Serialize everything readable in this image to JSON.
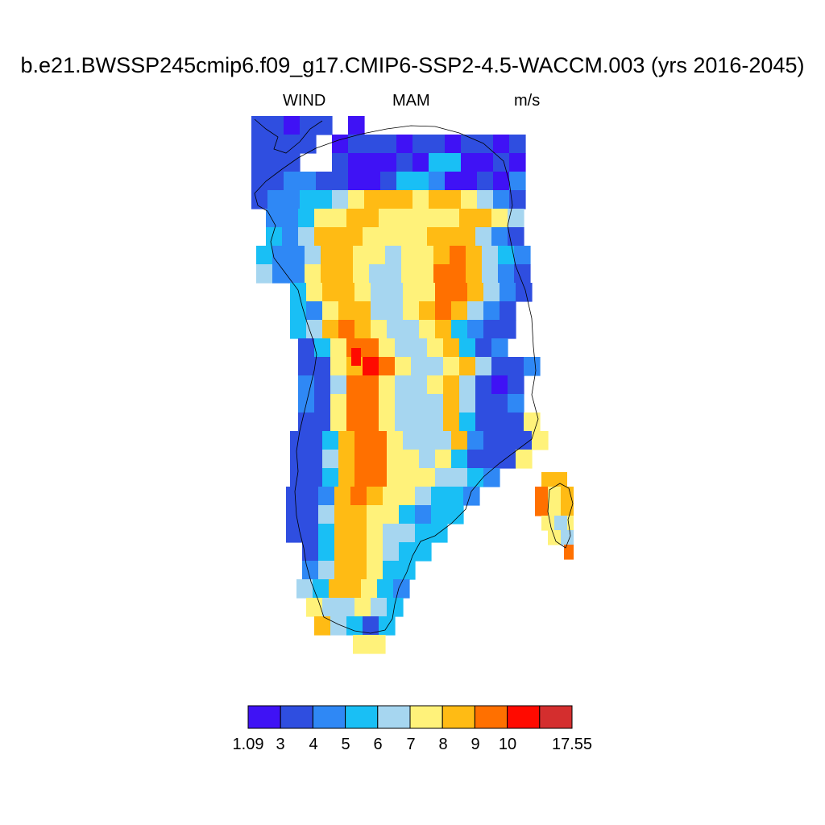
{
  "title": "b.e21.BWSSP245cmip6.f09_g17.CMIP6-SSP2-4.5-WACCM.003 (yrs 2016-2045)",
  "left_label": "WIND",
  "center_label": "MAM",
  "right_label": "m/s",
  "colorbar": {
    "labels": [
      "1.09",
      "3",
      "4",
      "5",
      "6",
      "7",
      "8",
      "9",
      "10",
      "17.55"
    ],
    "colors": [
      "#3f12f5",
      "#2f4ee0",
      "#2f88f5",
      "#19bff5",
      "#a6d6f0",
      "#fff27a",
      "#ffbb14",
      "#ff7000",
      "#ff0a00",
      "#d42e2e"
    ]
  },
  "map": {
    "ocean_color": "#ffffff",
    "coast_color": "#000000"
  }
}
